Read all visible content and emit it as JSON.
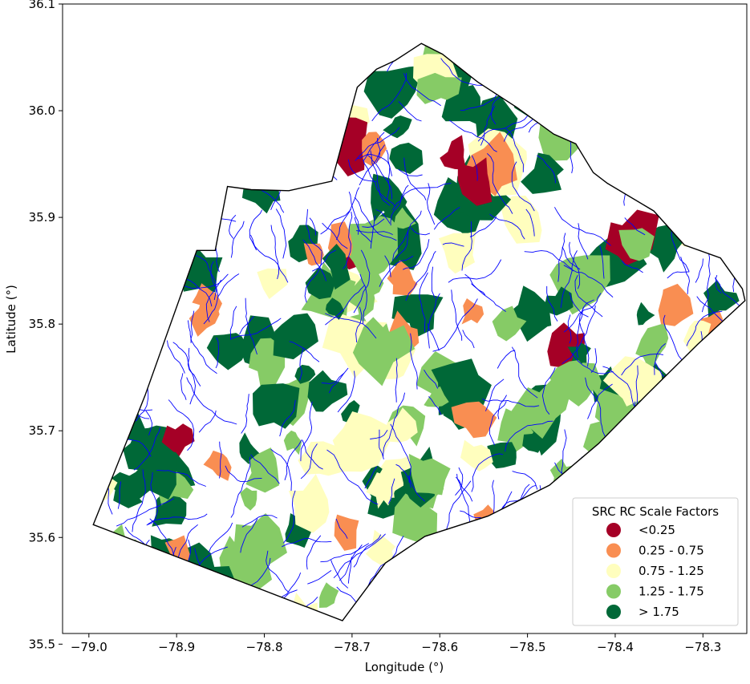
{
  "chart_data": {
    "type": "choropleth-map",
    "xlabel": "Longitude (°)",
    "ylabel": "Latitude (°)",
    "xlim": [
      -79.03,
      -78.25
    ],
    "ylim": [
      35.51,
      36.1
    ],
    "x_ticks": [
      {
        "value": -79.0,
        "label": "−79.0"
      },
      {
        "value": -78.9,
        "label": "−78.9"
      },
      {
        "value": -78.8,
        "label": "−78.8"
      },
      {
        "value": -78.7,
        "label": "−78.7"
      },
      {
        "value": -78.6,
        "label": "−78.6"
      },
      {
        "value": -78.5,
        "label": "−78.5"
      },
      {
        "value": -78.4,
        "label": "−78.4"
      },
      {
        "value": -78.3,
        "label": "−78.3"
      }
    ],
    "y_ticks": [
      {
        "value": 35.5,
        "label": "35.5"
      },
      {
        "value": 35.6,
        "label": "35.6"
      },
      {
        "value": 35.7,
        "label": "35.7"
      },
      {
        "value": 35.8,
        "label": "35.8"
      },
      {
        "value": 35.9,
        "label": "35.9"
      },
      {
        "value": 36.0,
        "label": "36.0"
      },
      {
        "value": 36.1,
        "label": "36.1"
      }
    ],
    "grid": false,
    "legend": {
      "title": "SRC RC Scale Factors",
      "position": "bottom-right",
      "entries": [
        {
          "label": "<0.25",
          "color": "#a50026"
        },
        {
          "label": "0.25 - 0.75",
          "color": "#f98e52"
        },
        {
          "label": "0.75 - 1.25",
          "color": "#fffebe"
        },
        {
          "label": "1.25 - 1.75",
          "color": "#86cb66"
        },
        {
          "label": "> 1.75",
          "color": "#006837"
        }
      ]
    },
    "boundary": [
      [
        -78.995,
        35.612
      ],
      [
        -78.936,
        35.733
      ],
      [
        -78.877,
        35.869
      ],
      [
        -78.856,
        35.869
      ],
      [
        -78.842,
        35.929
      ],
      [
        -78.815,
        35.926
      ],
      [
        -78.772,
        35.925
      ],
      [
        -78.723,
        35.934
      ],
      [
        -78.694,
        36.022
      ],
      [
        -78.672,
        36.039
      ],
      [
        -78.651,
        36.047
      ],
      [
        -78.621,
        36.063
      ],
      [
        -78.597,
        36.053
      ],
      [
        -78.557,
        36.027
      ],
      [
        -78.512,
        36.003
      ],
      [
        -78.47,
        35.978
      ],
      [
        -78.445,
        35.969
      ],
      [
        -78.425,
        35.942
      ],
      [
        -78.409,
        35.932
      ],
      [
        -78.356,
        35.906
      ],
      [
        -78.321,
        35.874
      ],
      [
        -78.28,
        35.862
      ],
      [
        -78.255,
        35.833
      ],
      [
        -78.252,
        35.822
      ],
      [
        -78.306,
        35.781
      ],
      [
        -78.365,
        35.733
      ],
      [
        -78.419,
        35.688
      ],
      [
        -78.475,
        35.649
      ],
      [
        -78.545,
        35.62
      ],
      [
        -78.617,
        35.601
      ],
      [
        -78.662,
        35.576
      ],
      [
        -78.711,
        35.522
      ]
    ],
    "stream_network_color": "#0000ff"
  }
}
